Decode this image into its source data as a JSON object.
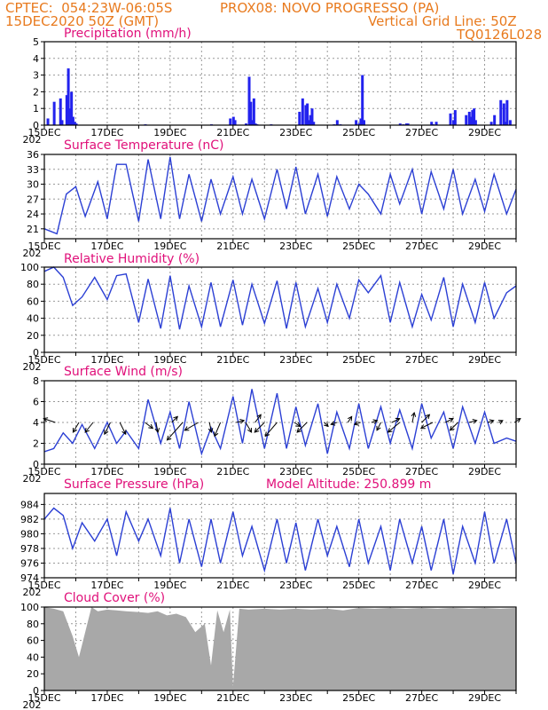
{
  "header": {
    "line1_left": "CPTEC:  054:23W-06:05S",
    "line1_right": "PROX08: NOVO PROGRESSO (PA)",
    "line2_left": "15DEC2020 50Z (GMT)",
    "line2_right": "Vertical Grid Line: 50Z",
    "line3_right": "TQ0126L028"
  },
  "x_axis": {
    "labels": [
      "15DEC",
      "17DEC",
      "19DEC",
      "21DEC",
      "23DEC",
      "25DEC",
      "27DEC",
      "29DEC"
    ],
    "sublabel": "202"
  },
  "colors": {
    "line": "#2b3fd4",
    "bar": "#2222ee",
    "cloud": "#a8a8a8",
    "header": "#e87a1e",
    "title": "#e0107a"
  },
  "chart_data": [
    {
      "type": "bar",
      "title": "Precipitation (mm/h)",
      "ylim": [
        0,
        5
      ],
      "yticks": [
        0,
        1,
        2,
        3,
        4,
        5
      ],
      "xlim": [
        0,
        15
      ],
      "x": [
        0.1,
        0.3,
        0.5,
        0.55,
        0.7,
        0.75,
        0.8,
        0.85,
        0.9,
        0.95,
        1.0,
        3.2,
        5.3,
        5.9,
        6.0,
        6.05,
        6.4,
        6.5,
        6.55,
        6.6,
        6.65,
        6.7,
        6.75,
        7.2,
        8.1,
        8.2,
        8.3,
        8.35,
        8.4,
        8.45,
        8.5,
        8.55,
        9.2,
        9.3,
        9.4,
        9.9,
        10.0,
        10.05,
        10.1,
        10.15,
        11.3,
        11.4,
        11.5,
        11.55,
        12.3,
        12.35,
        12.45,
        12.9,
        13.0,
        13.05,
        13.4,
        13.5,
        13.55,
        13.6,
        13.65,
        13.7,
        14.2,
        14.3,
        14.5,
        14.6,
        14.65,
        14.7,
        14.8
      ],
      "values": [
        0.4,
        1.4,
        1.6,
        0.3,
        1.8,
        3.4,
        1.0,
        2.0,
        0.5,
        0.2,
        0.1,
        0.05,
        0.05,
        0.4,
        0.5,
        0.3,
        0.1,
        2.9,
        1.4,
        0.3,
        1.6,
        0.1,
        0.05,
        0.05,
        0.8,
        1.6,
        1.2,
        1.3,
        0.3,
        0.6,
        1.0,
        0.2,
        0.05,
        0.3,
        0.05,
        0.3,
        0.1,
        0.4,
        3.0,
        0.3,
        0.1,
        0.05,
        0.1,
        0.1,
        0.2,
        0.05,
        0.2,
        0.7,
        0.3,
        0.9,
        0.6,
        0.8,
        0.5,
        0.9,
        1.0,
        0.3,
        0.2,
        0.6,
        1.5,
        1.3,
        0.2,
        1.5,
        0.3
      ]
    },
    {
      "type": "line",
      "title": "Surface Temperature (nC)",
      "ylim": [
        19,
        36
      ],
      "yticks": [
        21,
        24,
        27,
        30,
        33,
        36
      ],
      "xlim": [
        0,
        15
      ],
      "x": [
        0,
        0.4,
        0.7,
        1.0,
        1.3,
        1.7,
        2.0,
        2.3,
        2.6,
        3.0,
        3.3,
        3.7,
        4.0,
        4.3,
        4.6,
        5.0,
        5.3,
        5.6,
        6.0,
        6.3,
        6.6,
        7.0,
        7.4,
        7.7,
        8.0,
        8.3,
        8.7,
        9.0,
        9.3,
        9.7,
        10.0,
        10.3,
        10.7,
        11.0,
        11.3,
        11.7,
        12.0,
        12.3,
        12.7,
        13.0,
        13.3,
        13.7,
        14.0,
        14.3,
        14.7,
        15.0
      ],
      "values": [
        21,
        20,
        28,
        29.5,
        23.5,
        30.5,
        23,
        34,
        34,
        22.5,
        35,
        23,
        35.5,
        23,
        32,
        22.5,
        31,
        24,
        31.5,
        24,
        31,
        23,
        33,
        25,
        33.5,
        24,
        32,
        23.5,
        31.5,
        25,
        30,
        28,
        24,
        32,
        26,
        33,
        24,
        32.5,
        25,
        33,
        24,
        31,
        24.5,
        32,
        24,
        29
      ]
    },
    {
      "type": "line",
      "title": "Relative Humidity (%)",
      "ylim": [
        0,
        100
      ],
      "yticks": [
        0,
        20,
        40,
        60,
        80,
        100
      ],
      "xlim": [
        0,
        15
      ],
      "x": [
        0,
        0.3,
        0.6,
        0.9,
        1.2,
        1.6,
        2.0,
        2.3,
        2.6,
        3.0,
        3.3,
        3.7,
        4.0,
        4.3,
        4.6,
        5.0,
        5.3,
        5.6,
        6.0,
        6.3,
        6.6,
        7.0,
        7.4,
        7.7,
        8.0,
        8.3,
        8.7,
        9.0,
        9.3,
        9.7,
        10.0,
        10.3,
        10.7,
        11.0,
        11.3,
        11.7,
        12.0,
        12.3,
        12.7,
        13.0,
        13.3,
        13.7,
        14.0,
        14.3,
        14.7,
        15.0
      ],
      "values": [
        95,
        100,
        88,
        55,
        65,
        88,
        62,
        90,
        92,
        35,
        86,
        28,
        90,
        27,
        78,
        30,
        82,
        30,
        85,
        32,
        80,
        34,
        84,
        28,
        82,
        30,
        75,
        35,
        80,
        40,
        85,
        70,
        90,
        35,
        82,
        30,
        68,
        38,
        88,
        30,
        80,
        35,
        82,
        40,
        70,
        78
      ]
    },
    {
      "type": "line",
      "title": "Surface Wind (m/s)",
      "ylim": [
        0,
        8
      ],
      "yticks": [
        0,
        2,
        4,
        6,
        8
      ],
      "xlim": [
        0,
        15
      ],
      "x": [
        0,
        0.3,
        0.6,
        0.9,
        1.2,
        1.6,
        2.0,
        2.3,
        2.6,
        3.0,
        3.3,
        3.7,
        4.0,
        4.3,
        4.6,
        5.0,
        5.3,
        5.6,
        6.0,
        6.3,
        6.6,
        7.0,
        7.4,
        7.7,
        8.0,
        8.3,
        8.7,
        9.0,
        9.3,
        9.7,
        10.0,
        10.3,
        10.7,
        11.0,
        11.3,
        11.7,
        12.0,
        12.3,
        12.7,
        13.0,
        13.3,
        13.7,
        14.0,
        14.3,
        14.7,
        15.0
      ],
      "values": [
        1.2,
        1.5,
        3.0,
        2.0,
        3.8,
        1.5,
        4.0,
        2.0,
        3.2,
        1.5,
        6.2,
        2.0,
        5.0,
        1.5,
        6.0,
        1.0,
        3.5,
        1.5,
        6.5,
        2.0,
        7.2,
        1.5,
        6.8,
        1.5,
        5.5,
        1.8,
        5.8,
        1.0,
        5.0,
        1.5,
        5.8,
        1.5,
        5.5,
        2.0,
        5.2,
        1.5,
        5.8,
        2.5,
        5.0,
        1.5,
        5.5,
        2.0,
        5.0,
        2.0,
        2.5,
        2.2
      ],
      "arrows": [
        [
          0.35,
          -0.6,
          0.2
        ],
        [
          1.1,
          -0.3,
          -0.5
        ],
        [
          1.55,
          -0.4,
          -0.5
        ],
        [
          2.1,
          -0.3,
          -0.6
        ],
        [
          2.4,
          0.3,
          -0.6
        ],
        [
          3.2,
          0.4,
          -0.3
        ],
        [
          3.55,
          0.1,
          -0.5
        ],
        [
          4.05,
          0.3,
          0.3
        ],
        [
          4.4,
          -0.8,
          -0.9
        ],
        [
          4.9,
          -0.7,
          -0.4
        ],
        [
          5.25,
          0.1,
          -0.5
        ],
        [
          5.6,
          -0.3,
          -0.7
        ],
        [
          6.1,
          0.4,
          0.1
        ],
        [
          6.4,
          0.3,
          -0.5
        ],
        [
          6.7,
          0.3,
          0.4
        ],
        [
          7.0,
          -0.5,
          -0.5
        ],
        [
          7.4,
          -0.6,
          -0.7
        ],
        [
          7.95,
          0.3,
          -0.2
        ],
        [
          8.35,
          -0.5,
          -0.5
        ],
        [
          8.9,
          0.2,
          -0.2
        ],
        [
          9.3,
          -0.3,
          -0.1
        ],
        [
          9.65,
          0.2,
          0.3
        ],
        [
          10.05,
          -0.3,
          -0.1
        ],
        [
          10.4,
          0.3,
          0.1
        ],
        [
          10.7,
          -0.2,
          -0.4
        ],
        [
          11.05,
          0.4,
          0.2
        ],
        [
          11.3,
          -0.6,
          -0.5
        ],
        [
          11.7,
          0.1,
          0.5
        ],
        [
          12.0,
          0.4,
          0.4
        ],
        [
          12.35,
          -0.6,
          -0.3
        ],
        [
          12.75,
          0.4,
          0.2
        ],
        [
          13.15,
          -0.4,
          -0.4
        ],
        [
          13.5,
          0.4,
          0.1
        ],
        [
          14.1,
          0.3,
          0.1
        ],
        [
          14.45,
          0.2,
          0.1
        ],
        [
          14.95,
          0.3,
          0.2
        ]
      ]
    },
    {
      "type": "line",
      "title": "Surface Pressure (hPa)",
      "annotation": "Model Altitude: 250.899  m",
      "ylim": [
        974,
        985.5
      ],
      "yticks": [
        974,
        976,
        978,
        980,
        982,
        984
      ],
      "xlim": [
        0,
        15
      ],
      "x": [
        0,
        0.3,
        0.6,
        0.9,
        1.2,
        1.6,
        2.0,
        2.3,
        2.6,
        3.0,
        3.3,
        3.7,
        4.0,
        4.3,
        4.6,
        5.0,
        5.3,
        5.6,
        6.0,
        6.3,
        6.6,
        7.0,
        7.4,
        7.7,
        8.0,
        8.3,
        8.7,
        9.0,
        9.3,
        9.7,
        10.0,
        10.3,
        10.7,
        11.0,
        11.3,
        11.7,
        12.0,
        12.3,
        12.7,
        13.0,
        13.3,
        13.7,
        14.0,
        14.3,
        14.7,
        15.0
      ],
      "values": [
        982,
        983.5,
        982.5,
        978,
        981.5,
        979,
        982,
        977,
        983,
        979,
        982,
        977,
        983.5,
        976,
        982,
        975.5,
        982,
        976,
        983,
        977,
        981,
        975,
        982,
        976,
        981.5,
        975,
        982,
        977,
        981,
        975.5,
        982,
        976,
        981,
        975,
        982,
        976,
        981,
        975,
        982,
        974.5,
        981,
        976,
        983,
        976,
        982,
        976
      ]
    },
    {
      "type": "area",
      "title": "Cloud Cover (%)",
      "ylim": [
        0,
        100
      ],
      "yticks": [
        0,
        20,
        40,
        60,
        80,
        100
      ],
      "xlim": [
        0,
        15
      ],
      "x": [
        0,
        0.3,
        0.6,
        0.9,
        1.1,
        1.3,
        1.5,
        1.7,
        2.0,
        2.3,
        2.6,
        3.0,
        3.3,
        3.6,
        3.9,
        4.2,
        4.5,
        4.8,
        5.1,
        5.3,
        5.5,
        5.7,
        5.9,
        6.0,
        6.2,
        6.5,
        7.0,
        7.5,
        8.0,
        8.5,
        9.0,
        9.5,
        10.0,
        10.5,
        11.0,
        11.5,
        12.0,
        12.5,
        13.0,
        13.5,
        14.0,
        14.5,
        15.0
      ],
      "values": [
        100,
        98,
        95,
        65,
        40,
        70,
        100,
        95,
        97,
        96,
        95,
        94,
        93,
        95,
        90,
        92,
        88,
        70,
        80,
        30,
        96,
        70,
        97,
        5,
        98,
        97,
        98,
        97,
        98,
        97,
        98,
        96,
        99,
        98,
        99,
        98,
        99,
        98,
        99,
        98,
        99,
        98,
        99
      ]
    }
  ]
}
